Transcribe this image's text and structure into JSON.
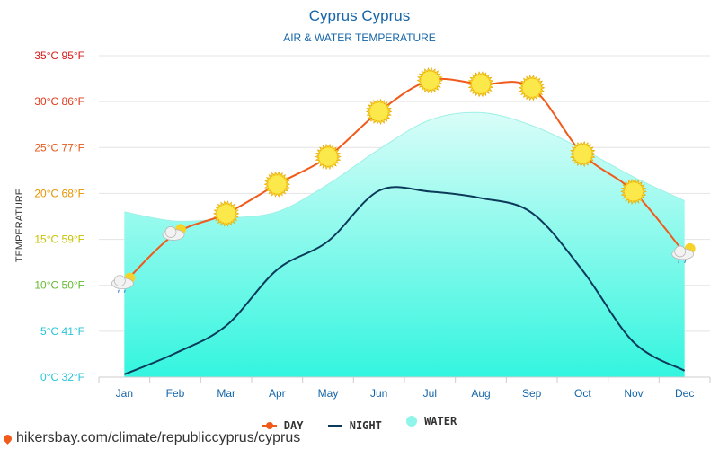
{
  "title": "Cyprus Cyprus",
  "subtitle": "AIR & WATER TEMPERATURE",
  "source": "hikersbay.com/climate/republiccyprus/cyprus",
  "colors": {
    "day": "#f05a1a",
    "night": "#0b3a5a",
    "water": "#8ff5ea",
    "title": "#1565a8"
  },
  "legend": {
    "day": "DAY",
    "night": "NIGHT",
    "water": "WATER"
  },
  "chart_data": {
    "type": "line",
    "title": "Cyprus Cyprus",
    "subtitle": "AIR & WATER TEMPERATURE",
    "xlabel": "",
    "ylabel": "TEMPERATURE",
    "ylim": [
      0,
      35
    ],
    "grid": true,
    "legend_position": "bottom",
    "categories": [
      "Jan",
      "Feb",
      "Mar",
      "Apr",
      "May",
      "Jun",
      "Jul",
      "Aug",
      "Sep",
      "Oct",
      "Nov",
      "Dec"
    ],
    "ytick_values": [
      0,
      5,
      10,
      15,
      20,
      25,
      30,
      35
    ],
    "ytick_labels": [
      "0°C 32°F",
      "5°C 41°F",
      "10°C 50°F",
      "15°C 59°F",
      "20°C 68°F",
      "25°C 77°F",
      "30°C 86°F",
      "35°C 95°F"
    ],
    "ytick_colors": [
      "#26c6da",
      "#26c6da",
      "#66bb33",
      "#c8c200",
      "#e69500",
      "#e65a1a",
      "#e03a1a",
      "#d81a1a"
    ],
    "series": [
      {
        "name": "DAY",
        "values": [
          10.3,
          15.6,
          17.8,
          21.0,
          24.0,
          28.9,
          32.3,
          31.9,
          31.5,
          24.3,
          20.2,
          13.5
        ],
        "icons": [
          "cloud-rain",
          "cloud-sun",
          "sun",
          "sun",
          "sun",
          "sun",
          "sun",
          "sun",
          "sun",
          "sun",
          "sun",
          "cloud-rain"
        ]
      },
      {
        "name": "NIGHT",
        "values": [
          0.3,
          2.6,
          5.6,
          11.7,
          14.8,
          20.3,
          20.2,
          19.5,
          17.9,
          11.6,
          3.8,
          0.7
        ]
      },
      {
        "name": "WATER",
        "values": [
          18.0,
          17.0,
          17.3,
          18.0,
          21.0,
          24.8,
          28.0,
          28.8,
          27.4,
          24.8,
          21.8,
          19.2
        ]
      }
    ]
  }
}
